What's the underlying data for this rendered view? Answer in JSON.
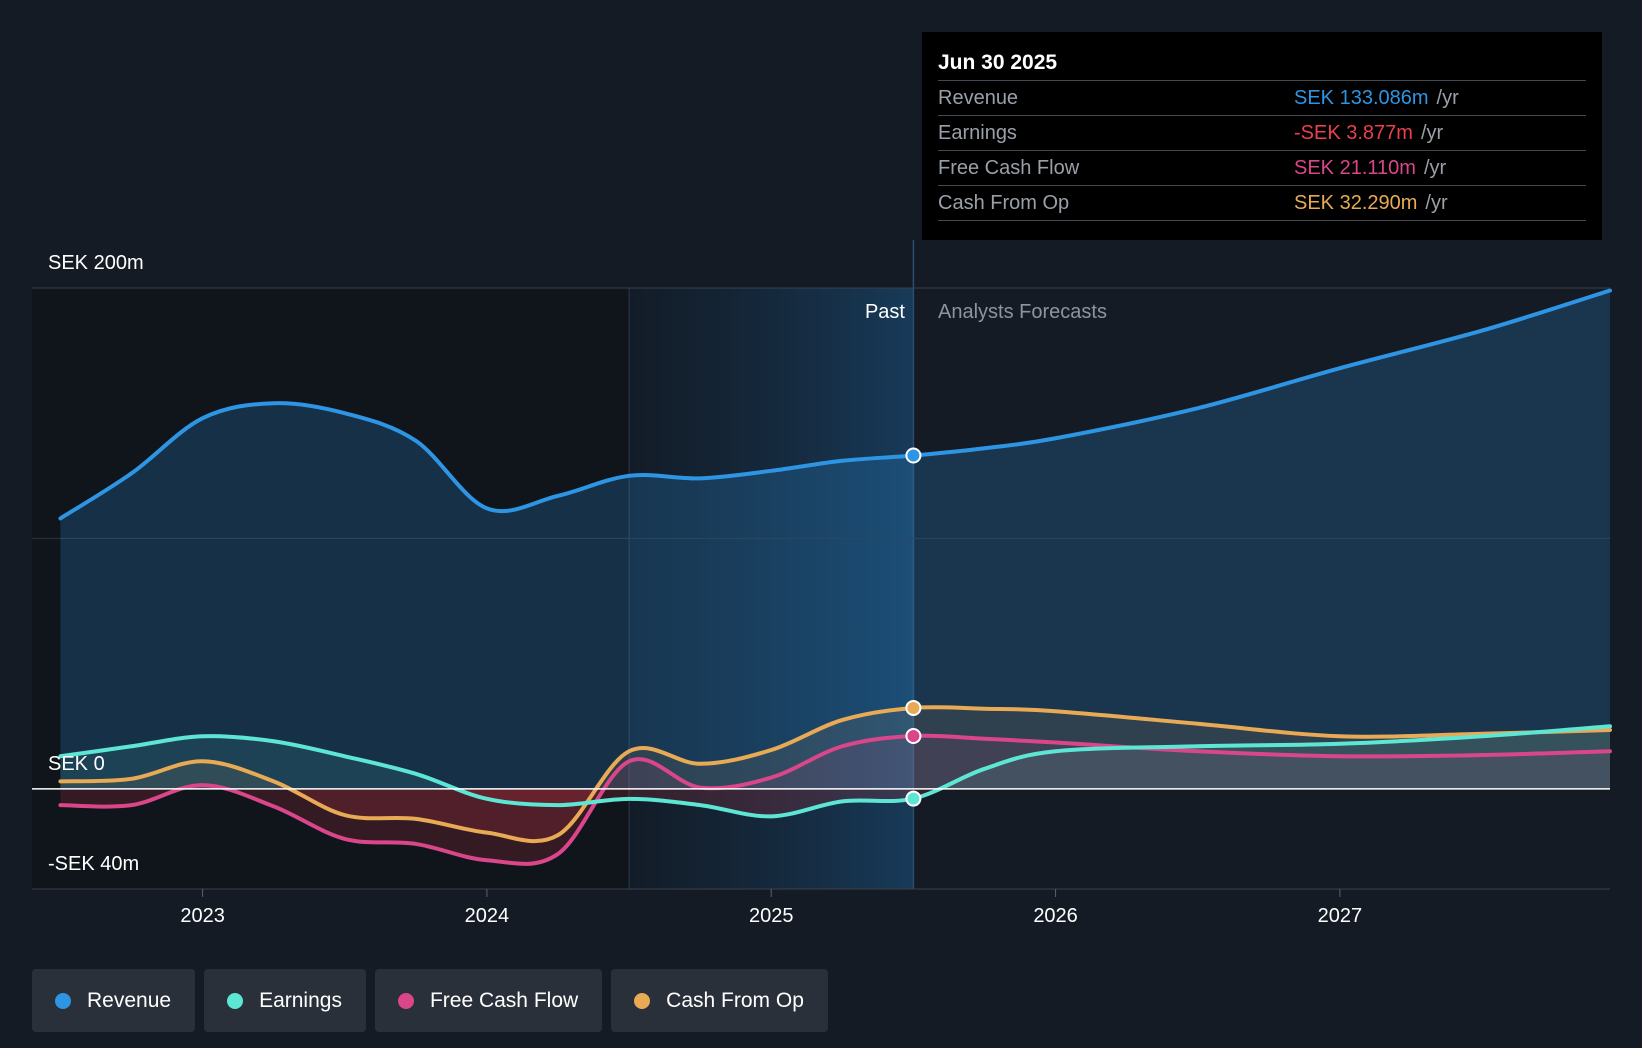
{
  "tooltip": {
    "date": "Jun 30 2025",
    "rows": [
      {
        "label": "Revenue",
        "value": "SEK 133.086m",
        "unit": "/yr",
        "color": "#2d95e3"
      },
      {
        "label": "Earnings",
        "value": "-SEK 3.877m",
        "unit": "/yr",
        "color": "#e8404d"
      },
      {
        "label": "Free Cash Flow",
        "value": "SEK 21.110m",
        "unit": "/yr",
        "color": "#d9468a"
      },
      {
        "label": "Cash From Op",
        "value": "SEK 32.290m",
        "unit": "/yr",
        "color": "#e8aa55"
      }
    ]
  },
  "legend": [
    {
      "label": "Revenue",
      "color": "#2d95e3"
    },
    {
      "label": "Earnings",
      "color": "#5ee6d4"
    },
    {
      "label": "Free Cash Flow",
      "color": "#d9468a"
    },
    {
      "label": "Cash From Op",
      "color": "#e8aa55"
    }
  ],
  "chart_data": {
    "type": "line",
    "title": "",
    "y_tick_labels": {
      "top": "SEK 200m",
      "zero": "SEK 0",
      "bottom": "-SEK 40m"
    },
    "ylim": [
      -40,
      200
    ],
    "xlim": [
      2022.4,
      2027.95
    ],
    "x_ticks": [
      2023,
      2024,
      2025,
      2026,
      2027
    ],
    "x_tick_labels": [
      "2023",
      "2024",
      "2025",
      "2026",
      "2027"
    ],
    "past_label": "Past",
    "forecast_label": "Analysts Forecasts",
    "past_end": 2025.5,
    "highlight_start": 2024.5,
    "series": [
      {
        "name": "Revenue",
        "color": "#2d95e3",
        "x": [
          2022.5,
          2022.75,
          2023.0,
          2023.25,
          2023.5,
          2023.75,
          2024.0,
          2024.25,
          2024.5,
          2024.75,
          2025.0,
          2025.25,
          2025.5,
          2025.75,
          2026.0,
          2026.5,
          2027.0,
          2027.5,
          2027.95
        ],
        "y": [
          108,
          126,
          148,
          154,
          150,
          139,
          112,
          117,
          125,
          124,
          127,
          131,
          133.1,
          136,
          140,
          152,
          168,
          183,
          199
        ]
      },
      {
        "name": "Earnings",
        "color": "#5ee6d4",
        "x": [
          2022.5,
          2022.75,
          2023.0,
          2023.25,
          2023.5,
          2023.75,
          2024.0,
          2024.25,
          2024.5,
          2024.75,
          2025.0,
          2025.25,
          2025.5,
          2025.75,
          2026.0,
          2026.5,
          2027.0,
          2027.5,
          2027.95
        ],
        "y": [
          13,
          17,
          21,
          19,
          13,
          6,
          -4,
          -6.5,
          -4,
          -6.5,
          -11,
          -5,
          -3.9,
          8,
          15,
          17,
          18,
          21,
          25
        ]
      },
      {
        "name": "Free Cash Flow",
        "color": "#d9468a",
        "x": [
          2022.5,
          2022.75,
          2023.0,
          2023.25,
          2023.5,
          2023.75,
          2024.0,
          2024.25,
          2024.5,
          2024.75,
          2025.0,
          2025.25,
          2025.5,
          2025.75,
          2026.0,
          2026.5,
          2027.0,
          2027.5,
          2027.95
        ],
        "y": [
          -6.5,
          -6.5,
          1.5,
          -7,
          -20,
          -22,
          -28.5,
          -26,
          11,
          0.5,
          4.5,
          17,
          21.1,
          20,
          18.5,
          15,
          13,
          13.5,
          15
        ]
      },
      {
        "name": "Cash From Op",
        "color": "#e8aa55",
        "x": [
          2022.5,
          2022.75,
          2023.0,
          2023.25,
          2023.5,
          2023.75,
          2024.0,
          2024.25,
          2024.5,
          2024.75,
          2025.0,
          2025.25,
          2025.5,
          2025.75,
          2026.0,
          2026.5,
          2027.0,
          2027.5,
          2027.95
        ],
        "y": [
          3,
          4,
          11,
          3,
          -10.5,
          -12,
          -17.5,
          -18.5,
          15,
          10,
          15.5,
          27.5,
          32.3,
          32,
          31,
          26,
          21,
          22,
          23.5
        ]
      }
    ]
  }
}
